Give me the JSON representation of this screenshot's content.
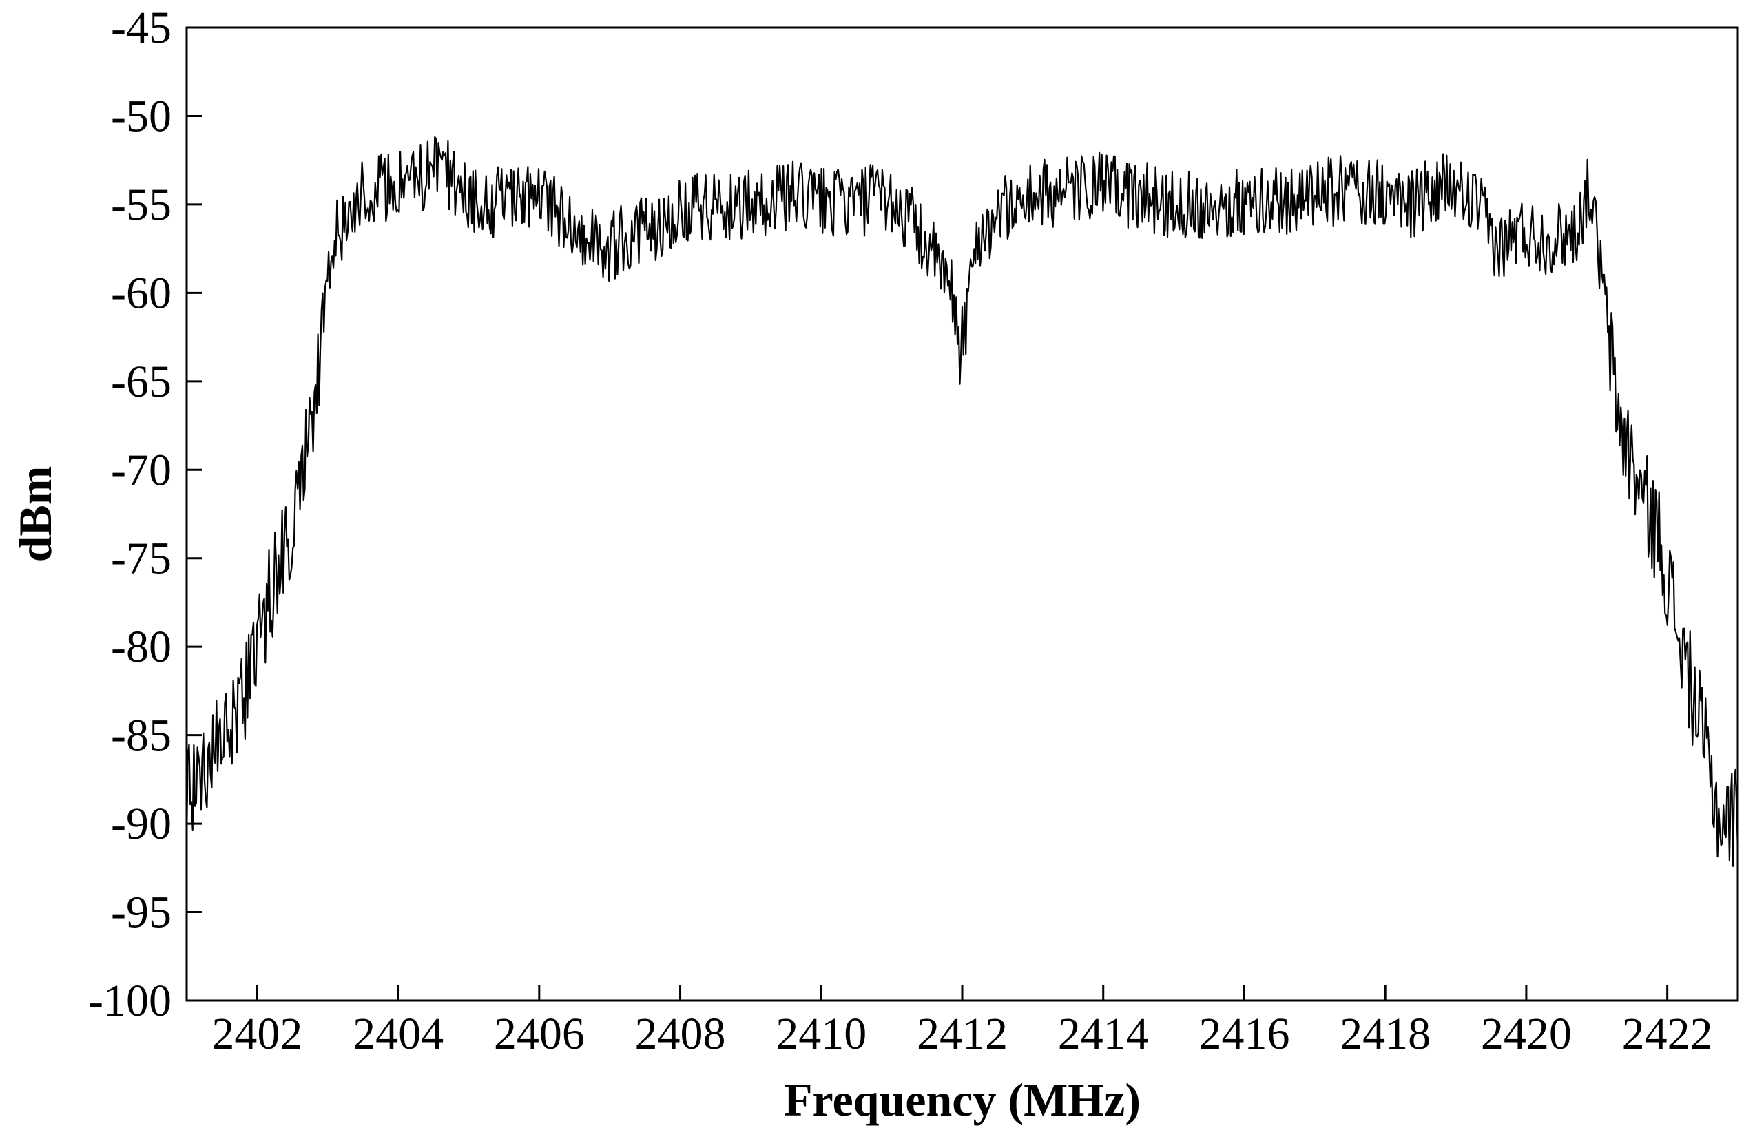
{
  "chart_data": {
    "type": "line",
    "title": "",
    "xlabel": "Frequency (MHz)",
    "ylabel": "dBm",
    "xlim": [
      2401,
      2423
    ],
    "ylim": [
      -100,
      -45
    ],
    "x_ticks": [
      2402,
      2404,
      2406,
      2408,
      2410,
      2412,
      2414,
      2416,
      2418,
      2420,
      2422
    ],
    "y_ticks": [
      -45,
      -50,
      -55,
      -60,
      -65,
      -70,
      -75,
      -80,
      -85,
      -90,
      -95,
      -100
    ],
    "grid": false,
    "legend": "none",
    "line_color": "#000000",
    "envelope": {
      "x": [
        2401.0,
        2401.4,
        2401.8,
        2402.2,
        2402.5,
        2402.8,
        2403.1,
        2403.5,
        2404.0,
        2404.6,
        2405.2,
        2406.0,
        2406.9,
        2407.5,
        2408.2,
        2409.0,
        2409.6,
        2410.4,
        2410.9,
        2411.3,
        2411.6,
        2411.85,
        2412.0,
        2412.2,
        2412.5,
        2413.0,
        2414.0,
        2415.0,
        2416.0,
        2417.0,
        2417.6,
        2418.3,
        2418.9,
        2419.3,
        2419.6,
        2419.9,
        2420.3,
        2420.7,
        2420.9,
        2421.1,
        2421.3,
        2421.6,
        2421.9,
        2422.2,
        2422.5,
        2422.75,
        2423.0
      ],
      "y": [
        -88,
        -86,
        -83,
        -77,
        -73,
        -66,
        -57,
        -54,
        -54,
        -53,
        -55,
        -54.5,
        -57.5,
        -56.5,
        -55,
        -55,
        -54.5,
        -55,
        -54.5,
        -56,
        -58,
        -60,
        -63,
        -57,
        -55.5,
        -54.5,
        -54,
        -55,
        -55,
        -54.5,
        -54,
        -55,
        -54,
        -55,
        -57.5,
        -56.5,
        -57,
        -56.5,
        -54,
        -60,
        -67,
        -71,
        -74,
        -80,
        -85,
        -90,
        -89.5
      ],
      "noise_amplitude_db": 2
    }
  }
}
